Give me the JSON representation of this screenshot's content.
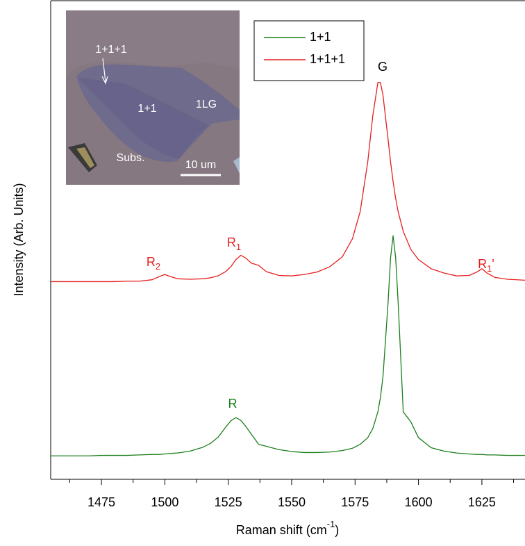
{
  "chart_data": {
    "type": "line",
    "x_label": {
      "text": "Raman shift (cm",
      "sup": "-1",
      "suffix": ")"
    },
    "y_label": "Intensity (Arb. Units)",
    "xlim": [
      1455,
      1642
    ],
    "ylim": [
      0,
      100
    ],
    "xticks": [
      1475,
      1500,
      1525,
      1550,
      1575,
      1600,
      1625
    ],
    "xminorticks": [
      1462.5,
      1487.5,
      1512.5,
      1537.5,
      1562.5,
      1587.5,
      1612.5,
      1637.5
    ],
    "grid": false,
    "legend_loc": "upper center",
    "x": [
      1455,
      1460,
      1465,
      1470,
      1475,
      1480,
      1485,
      1490,
      1495,
      1498,
      1500,
      1502,
      1505,
      1510,
      1515,
      1518,
      1521,
      1524,
      1526,
      1528,
      1530,
      1532,
      1534,
      1537,
      1540,
      1545,
      1550,
      1555,
      1560,
      1565,
      1570,
      1574,
      1577,
      1580,
      1582,
      1584,
      1585,
      1586,
      1588,
      1589,
      1590,
      1591,
      1592,
      1594,
      1597,
      1600,
      1605,
      1610,
      1615,
      1620,
      1623,
      1625,
      1627,
      1630,
      1635,
      1642
    ],
    "series": [
      {
        "name": "1+1",
        "color": "#1b7f1b",
        "values": [
          4.9,
          4.9,
          4.9,
          4.9,
          5.0,
          5.0,
          5.0,
          5.1,
          5.2,
          5.2,
          5.3,
          5.4,
          5.5,
          5.9,
          6.7,
          7.5,
          8.8,
          10.9,
          12.2,
          12.9,
          12.3,
          11.0,
          9.5,
          7.3,
          6.9,
          6.2,
          5.8,
          5.6,
          5.6,
          5.7,
          6.0,
          6.5,
          7.3,
          8.7,
          10.6,
          14.1,
          17.1,
          21.4,
          36.8,
          46.3,
          50.9,
          46.3,
          36.8,
          14.1,
          12.0,
          8.7,
          6.6,
          5.9,
          5.5,
          5.3,
          5.2,
          5.2,
          5.1,
          5.1,
          5.0,
          5.0
        ]
      },
      {
        "name": "1+1+1",
        "color": "#e61e1e",
        "values": [
          41.3,
          41.3,
          41.3,
          41.3,
          41.3,
          41.3,
          41.4,
          41.4,
          41.7,
          42.4,
          42.8,
          42.4,
          41.9,
          41.8,
          41.9,
          42.1,
          42.5,
          43.4,
          44.4,
          45.9,
          46.8,
          46.2,
          45.2,
          44.7,
          43.4,
          42.6,
          42.5,
          42.8,
          43.3,
          44.4,
          46.5,
          50.3,
          55.9,
          66.3,
          76.0,
          82.9,
          82.9,
          80.3,
          71.1,
          66.3,
          62.2,
          58.7,
          55.9,
          51.8,
          48.0,
          45.9,
          44.0,
          43.1,
          42.5,
          42.6,
          43.3,
          44.0,
          43.1,
          42.2,
          41.8,
          41.6
        ]
      }
    ],
    "annotations": [
      {
        "text": "G",
        "color": "#000000"
      },
      {
        "text": "R",
        "sub": "2",
        "color": "#e61e1e"
      },
      {
        "text": "R",
        "sub": "1",
        "color": "#e61e1e"
      },
      {
        "text": "R",
        "sub": "1",
        "suffix": "'",
        "color": "#e61e1e"
      },
      {
        "text": "R",
        "color": "#1b7f1b"
      }
    ],
    "inset": {
      "labels": [
        "1+1+1",
        "1+1",
        "1LG",
        "Subs."
      ],
      "scale_bar": "10 um"
    }
  }
}
